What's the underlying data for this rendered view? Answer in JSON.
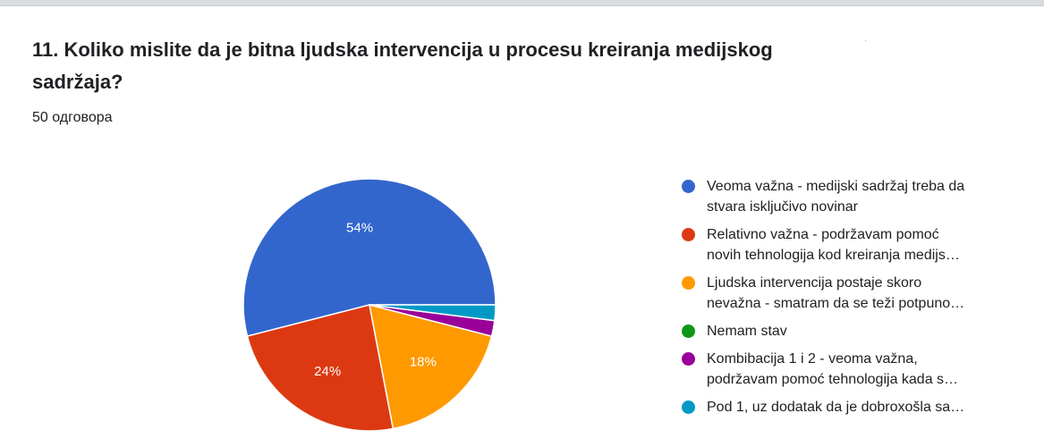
{
  "question": {
    "title": "11. Koliko mislite da je bitna ljudska intervencija u procesu kreiranja medijskog sadržaja?",
    "responses": "50 одговора"
  },
  "chart_data": {
    "type": "pie",
    "slices": [
      {
        "label": "Veoma važna - medijski sadržaj treba da\nstvara isključivo novinar",
        "value": 54,
        "color": "#3366cc",
        "data_label": "54%"
      },
      {
        "label": "Relativno važna - podržavam pomoć\nnovih tehnologija kod kreiranja medijs…",
        "value": 24,
        "color": "#dc3912",
        "data_label": "24%"
      },
      {
        "label": "Ljudska intervencija postaje skoro\nnevažna - smatram da se teži potpuno…",
        "value": 18,
        "color": "#ff9900",
        "data_label": "18%"
      },
      {
        "label": "Nemam stav",
        "value": 0,
        "color": "#109618",
        "data_label": ""
      },
      {
        "label": "Kombibacija 1 i 2 - veoma važna,\npodržavam pomoć tehnologija kada s…",
        "value": 2,
        "color": "#990099",
        "data_label": ""
      },
      {
        "label": "Pod 1, uz dodatak da je dobroxošla sa…",
        "value": 2,
        "color": "#0099c6",
        "data_label": ""
      }
    ],
    "start": "right-horizontal",
    "direction": "counterclockwise",
    "legend_position": "right"
  }
}
